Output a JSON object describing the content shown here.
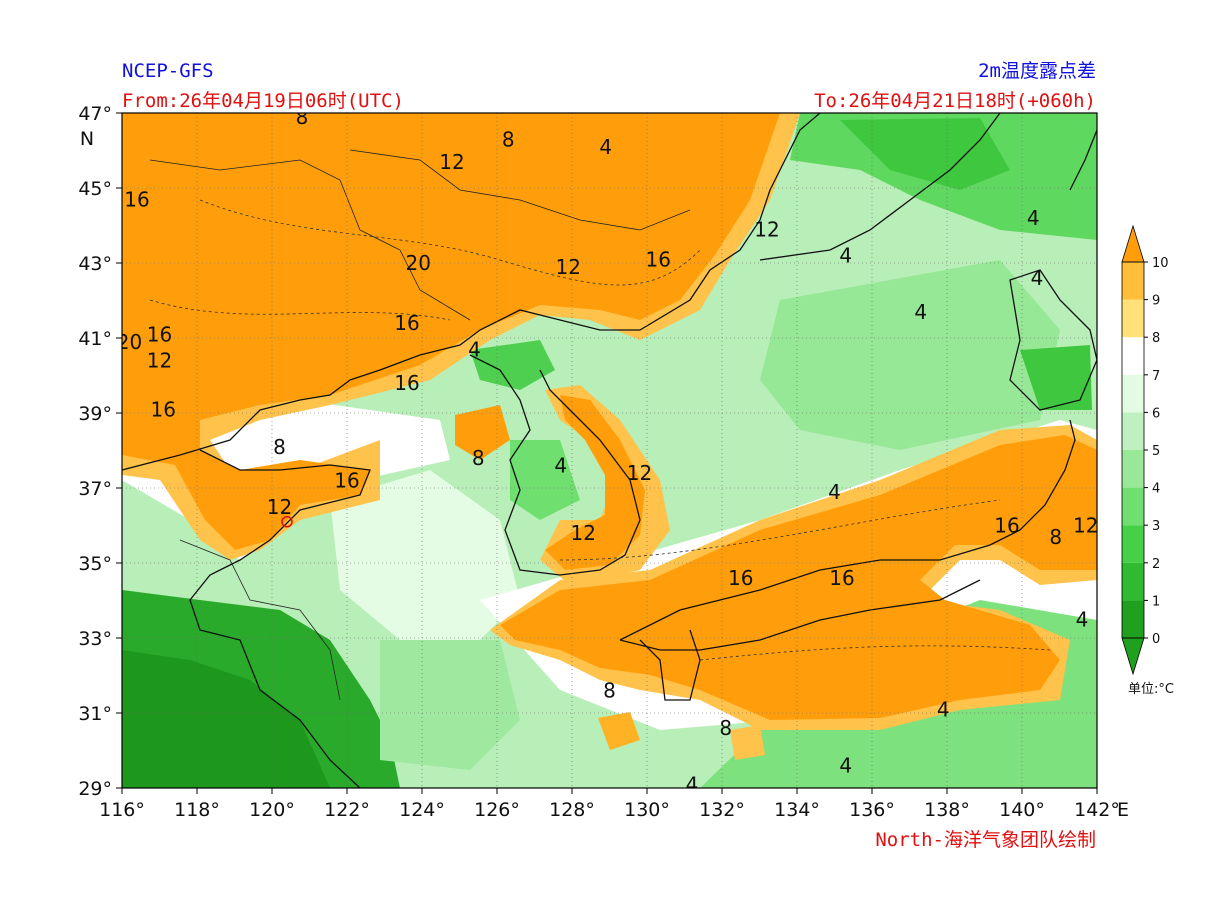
{
  "header": {
    "model": "NCEP-GFS",
    "variable": "2m温度露点差",
    "from": "From:26年04月19日06时(UTC)",
    "to": "To:26年04月21日18时(+060h)"
  },
  "footer": {
    "credit": "North-海洋气象团队绘制"
  },
  "axes": {
    "lat_labels": [
      "47°",
      "45°",
      "43°",
      "41°",
      "39°",
      "37°",
      "35°",
      "33°",
      "31°",
      "29°"
    ],
    "lat_unit": "N",
    "lon_labels": [
      "116°",
      "118°",
      "120°",
      "122°",
      "124°",
      "126°",
      "128°",
      "130°",
      "132°",
      "134°",
      "136°",
      "138°",
      "140°",
      "142°"
    ],
    "lon_unit": "E"
  },
  "colorbar": {
    "ticks": [
      "0",
      "1",
      "2",
      "3",
      "4",
      "5",
      "6",
      "7",
      "8",
      "9",
      "10"
    ],
    "unit": "单位:°C",
    "colors": [
      "#1fa01f",
      "#2fba2f",
      "#45d045",
      "#6fe06f",
      "#98e898",
      "#bff0bf",
      "#e2fbe2",
      "#ffffff",
      "#ffe079",
      "#ffbf3a",
      "#ff9e0a"
    ]
  },
  "contour_labels": [
    {
      "text": "8",
      "lon": 120.8,
      "lat": 46.9
    },
    {
      "text": "8",
      "lon": 126.3,
      "lat": 46.3
    },
    {
      "text": "4",
      "lon": 128.9,
      "lat": 46.1
    },
    {
      "text": "12",
      "lon": 124.8,
      "lat": 45.7
    },
    {
      "text": "16",
      "lon": 116.4,
      "lat": 44.7
    },
    {
      "text": "12",
      "lon": 133.2,
      "lat": 43.9
    },
    {
      "text": "20",
      "lon": 123.9,
      "lat": 43.0
    },
    {
      "text": "12",
      "lon": 127.9,
      "lat": 42.9
    },
    {
      "text": "16",
      "lon": 130.3,
      "lat": 43.1
    },
    {
      "text": "4",
      "lon": 135.3,
      "lat": 43.2
    },
    {
      "text": "4",
      "lon": 140.3,
      "lat": 44.2
    },
    {
      "text": "4",
      "lon": 140.4,
      "lat": 42.6
    },
    {
      "text": "4",
      "lon": 137.3,
      "lat": 41.7
    },
    {
      "text": "16",
      "lon": 123.6,
      "lat": 41.4
    },
    {
      "text": "20",
      "lon": 116.2,
      "lat": 40.9
    },
    {
      "text": "16",
      "lon": 117.0,
      "lat": 41.1
    },
    {
      "text": "12",
      "lon": 117.0,
      "lat": 40.4
    },
    {
      "text": "4",
      "lon": 125.4,
      "lat": 40.7
    },
    {
      "text": "16",
      "lon": 123.6,
      "lat": 39.8
    },
    {
      "text": "16",
      "lon": 117.1,
      "lat": 39.1
    },
    {
      "text": "8",
      "lon": 120.2,
      "lat": 38.1
    },
    {
      "text": "8",
      "lon": 125.5,
      "lat": 37.8
    },
    {
      "text": "4",
      "lon": 127.7,
      "lat": 37.6
    },
    {
      "text": "16",
      "lon": 122.0,
      "lat": 37.2
    },
    {
      "text": "12",
      "lon": 129.8,
      "lat": 37.4
    },
    {
      "text": "4",
      "lon": 135.0,
      "lat": 36.9
    },
    {
      "text": "12",
      "lon": 120.2,
      "lat": 36.5
    },
    {
      "text": "12",
      "lon": 128.3,
      "lat": 35.8
    },
    {
      "text": "16",
      "lon": 139.6,
      "lat": 36.0
    },
    {
      "text": "8",
      "lon": 140.9,
      "lat": 35.7
    },
    {
      "text": "12",
      "lon": 141.7,
      "lat": 36.0
    },
    {
      "text": "16",
      "lon": 132.5,
      "lat": 34.6
    },
    {
      "text": "16",
      "lon": 135.2,
      "lat": 34.6
    },
    {
      "text": "4",
      "lon": 141.6,
      "lat": 33.5
    },
    {
      "text": "8",
      "lon": 129.0,
      "lat": 31.6
    },
    {
      "text": "4",
      "lon": 137.9,
      "lat": 31.1
    },
    {
      "text": "8",
      "lon": 132.1,
      "lat": 30.6
    },
    {
      "text": "4",
      "lon": 135.3,
      "lat": 29.6
    },
    {
      "text": "4",
      "lon": 131.2,
      "lat": 29.1
    }
  ],
  "marker": {
    "lon": 120.4,
    "lat": 36.1
  }
}
